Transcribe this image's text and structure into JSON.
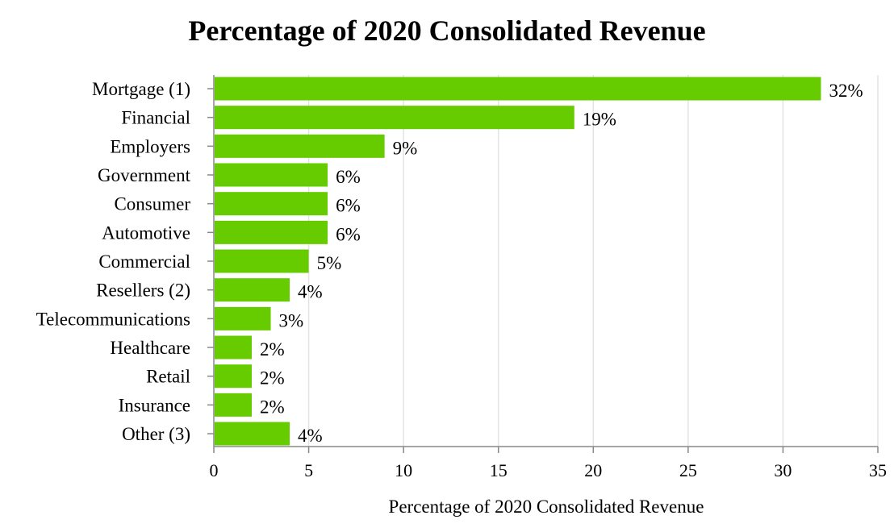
{
  "chart_data": {
    "type": "bar",
    "orientation": "horizontal",
    "title": "Percentage of 2020 Consolidated Revenue",
    "xlabel": "Percentage of 2020 Consolidated Revenue",
    "ylabel": "",
    "xlim": [
      0,
      35
    ],
    "xticks": [
      0,
      5,
      10,
      15,
      20,
      25,
      30,
      35
    ],
    "grid": true,
    "categories": [
      "Mortgage (1)",
      "Financial",
      "Employers",
      "Government",
      "Consumer",
      "Automotive",
      "Commercial",
      "Resellers (2)",
      "Telecommunications",
      "Healthcare",
      "Retail",
      "Insurance",
      "Other (3)"
    ],
    "values": [
      32,
      19,
      9,
      6,
      6,
      6,
      5,
      4,
      3,
      2,
      2,
      2,
      4
    ],
    "value_labels": [
      "32%",
      "19%",
      "9%",
      "6%",
      "6%",
      "6%",
      "5%",
      "4%",
      "3%",
      "2%",
      "2%",
      "2%",
      "4%"
    ],
    "bar_color": "#66cc00",
    "grid_color": "#e3e3e3",
    "axis_color": "#888888"
  }
}
